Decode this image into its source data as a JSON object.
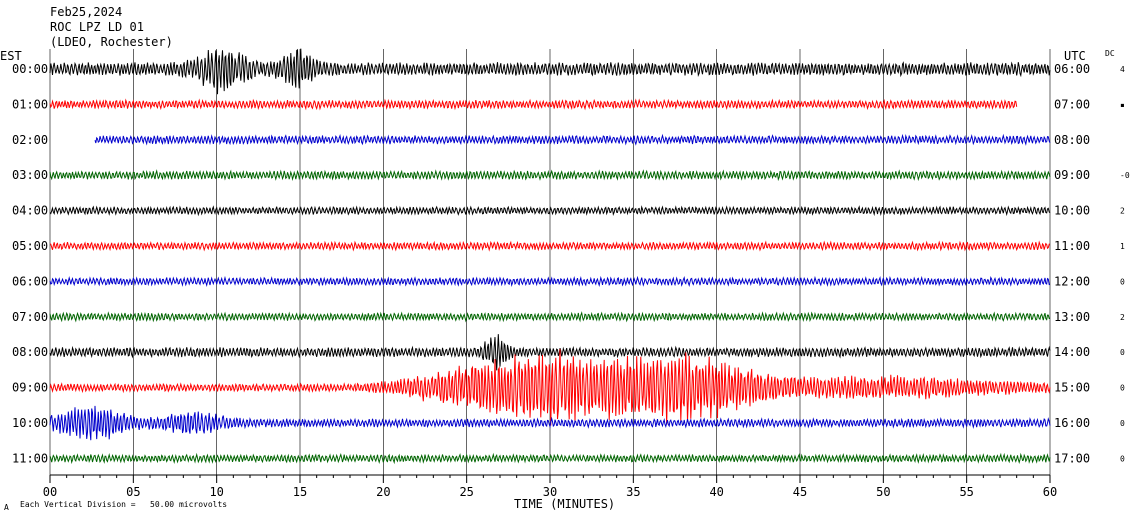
{
  "header": {
    "date": "Feb25,2024",
    "station": "ROC LPZ LD 01",
    "network": "(LDEO, Rochester)"
  },
  "left_tz": "EST",
  "right_tz": "UTC",
  "dc_header": "DC",
  "footer": {
    "scale_note": "Each Vertical Division =   50.00 microvolts",
    "corner_mark": "A"
  },
  "chart_data": {
    "type": "line",
    "title": "",
    "xlabel": "TIME (MINUTES)",
    "ylabel": "",
    "xlim": [
      0,
      60
    ],
    "x_ticks": [
      "00",
      "05",
      "10",
      "15",
      "20",
      "25",
      "30",
      "35",
      "40",
      "45",
      "50",
      "55",
      "60"
    ],
    "grid": true,
    "colors": [
      "#000000",
      "#ff0000",
      "#0000cc",
      "#006400"
    ],
    "series": [
      {
        "est": "00:00",
        "utc": "06:00",
        "dc": "4",
        "color": "#000000",
        "start_min": 0,
        "end_min": 60,
        "amplitude": 0.35,
        "events": [
          {
            "t": 10.3,
            "amp": 1.0,
            "dur": 1.5
          },
          {
            "t": 14.8,
            "amp": 0.8,
            "dur": 1.0
          }
        ]
      },
      {
        "est": "01:00",
        "utc": "07:00",
        "dc": "▪",
        "color": "#ff0000",
        "start_min": 0,
        "end_min": 58,
        "amplitude": 0.22,
        "events": []
      },
      {
        "est": "02:00",
        "utc": "08:00",
        "dc": "",
        "color": "#0000cc",
        "start_min": 2.7,
        "end_min": 60,
        "amplitude": 0.22,
        "events": []
      },
      {
        "est": "03:00",
        "utc": "09:00",
        "dc": "-0",
        "color": "#006400",
        "start_min": 0,
        "end_min": 60,
        "amplitude": 0.22,
        "events": []
      },
      {
        "est": "04:00",
        "utc": "10:00",
        "dc": "2",
        "color": "#000000",
        "start_min": 0,
        "end_min": 60,
        "amplitude": 0.2,
        "events": []
      },
      {
        "est": "05:00",
        "utc": "11:00",
        "dc": "1",
        "color": "#ff0000",
        "start_min": 0,
        "end_min": 60,
        "amplitude": 0.2,
        "events": []
      },
      {
        "est": "06:00",
        "utc": "12:00",
        "dc": "0",
        "color": "#0000cc",
        "start_min": 0,
        "end_min": 60,
        "amplitude": 0.2,
        "events": []
      },
      {
        "est": "07:00",
        "utc": "13:00",
        "dc": "2",
        "color": "#006400",
        "start_min": 0,
        "end_min": 60,
        "amplitude": 0.2,
        "events": []
      },
      {
        "est": "08:00",
        "utc": "14:00",
        "dc": "0",
        "color": "#000000",
        "start_min": 0,
        "end_min": 60,
        "amplitude": 0.25,
        "events": [
          {
            "t": 26.8,
            "amp": 0.7,
            "dur": 0.8
          }
        ]
      },
      {
        "est": "09:00",
        "utc": "15:00",
        "dc": "0",
        "color": "#ff0000",
        "start_min": 0,
        "end_min": 60,
        "amplitude": 0.2,
        "events": [
          {
            "t": 25.5,
            "amp": 0.9,
            "dur": 4
          },
          {
            "t": 29.8,
            "amp": 1.4,
            "dur": 3.5
          },
          {
            "t": 36,
            "amp": 1.5,
            "dur": 4
          },
          {
            "t": 40.5,
            "amp": 0.8,
            "dur": 3
          },
          {
            "t": 50,
            "amp": 0.45,
            "dur": 8
          }
        ]
      },
      {
        "est": "10:00",
        "utc": "16:00",
        "dc": "0",
        "color": "#0000cc",
        "start_min": 0,
        "end_min": 60,
        "amplitude": 0.22,
        "events": [
          {
            "t": 2.5,
            "amp": 0.85,
            "dur": 2
          },
          {
            "t": 8.5,
            "amp": 0.45,
            "dur": 2
          }
        ]
      },
      {
        "est": "11:00",
        "utc": "17:00",
        "dc": "0",
        "color": "#006400",
        "start_min": 0,
        "end_min": 60,
        "amplitude": 0.2,
        "events": []
      }
    ]
  }
}
